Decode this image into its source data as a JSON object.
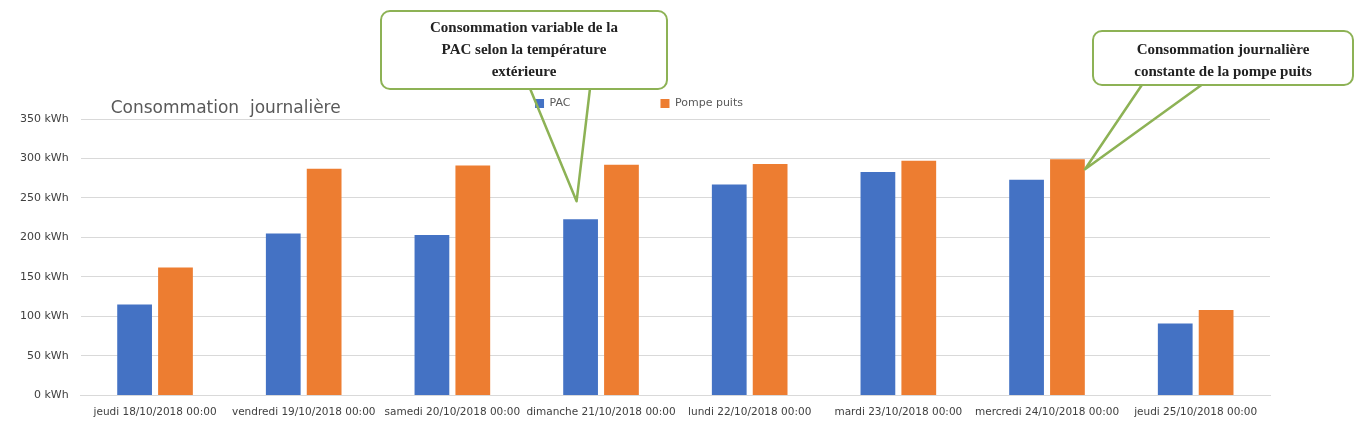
{
  "chart_data": {
    "type": "bar",
    "title": "Consommation  journalière",
    "categories": [
      "jeudi 18/10/2018 00:00",
      "vendredi 19/10/2018 00:00",
      "samedi 20/10/2018 00:00",
      "dimanche 21/10/2018 00:00",
      "lundi 22/10/2018 00:00",
      "mardi 23/10/2018 00:00",
      "mercredi 24/10/2018 00:00",
      "jeudi 25/10/2018 00:00"
    ],
    "series": [
      {
        "name": "PAC",
        "color": "#4472c4",
        "values": [
          115,
          205,
          203,
          223,
          267,
          283,
          273,
          91
        ]
      },
      {
        "name": "Pompe puits",
        "color": "#ed7d31",
        "values": [
          162,
          287,
          291,
          292,
          293,
          297,
          299,
          108
        ]
      }
    ],
    "ylim": [
      0,
      350
    ],
    "yticks": [
      {
        "value": 0,
        "label": "0 kWh"
      },
      {
        "value": 50,
        "label": "50 kWh"
      },
      {
        "value": 100,
        "label": "100 kWh"
      },
      {
        "value": 150,
        "label": "150 kWh"
      },
      {
        "value": 200,
        "label": "200 kWh"
      },
      {
        "value": 250,
        "label": "250 kWh"
      },
      {
        "value": 300,
        "label": "300 kWh"
      },
      {
        "value": 350,
        "label": "350 kWh"
      }
    ],
    "grid": "y",
    "legend": "top",
    "annotations": [
      "Consommation variable de la PAC selon la température extérieure",
      "Consommation journalière constante de la pompe puits"
    ]
  }
}
